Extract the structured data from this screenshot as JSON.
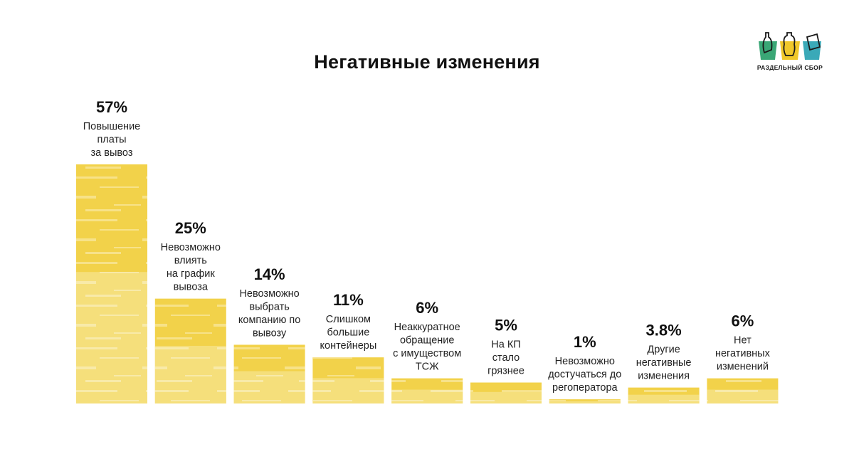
{
  "title": "Негативные изменения",
  "logo": {
    "text": "РАЗДЕЛЬНЫЙ СБОР",
    "icon": "recycling-bins-logo",
    "colors": [
      "#3aa776",
      "#f0c82a",
      "#3aa9b8"
    ]
  },
  "chart_data": {
    "type": "bar",
    "title": "Негативные изменения",
    "xlabel": "",
    "ylabel": "",
    "ylim": [
      0,
      57
    ],
    "grid": false,
    "bar_color": "#f2d24a",
    "bar_color_light": "#f7e79c",
    "categories": [
      [
        "Повышение",
        "платы",
        "за вывоз"
      ],
      [
        "Невозможно",
        "влиять",
        "на график",
        "вывоза"
      ],
      [
        "Невозможно",
        "выбрать",
        "компанию по",
        "вывозу"
      ],
      [
        "Слишком",
        "большие",
        "контейнеры"
      ],
      [
        "Неаккуратное",
        "обращение",
        "с имуществом",
        "ТСЖ"
      ],
      [
        "На КП",
        "стало",
        "грязнее"
      ],
      [
        "Невозможно",
        "достучаться до",
        "регоператора"
      ],
      [
        "Другие",
        "негативные",
        "изменения"
      ],
      [
        "Нет",
        "негативных",
        "изменений"
      ]
    ],
    "values": [
      57,
      25,
      14,
      11,
      6,
      5,
      1,
      3.8,
      6
    ],
    "data_labels": [
      "57%",
      "25%",
      "14%",
      "11%",
      "6%",
      "5%",
      "1%",
      "3.8%",
      "6%"
    ]
  }
}
